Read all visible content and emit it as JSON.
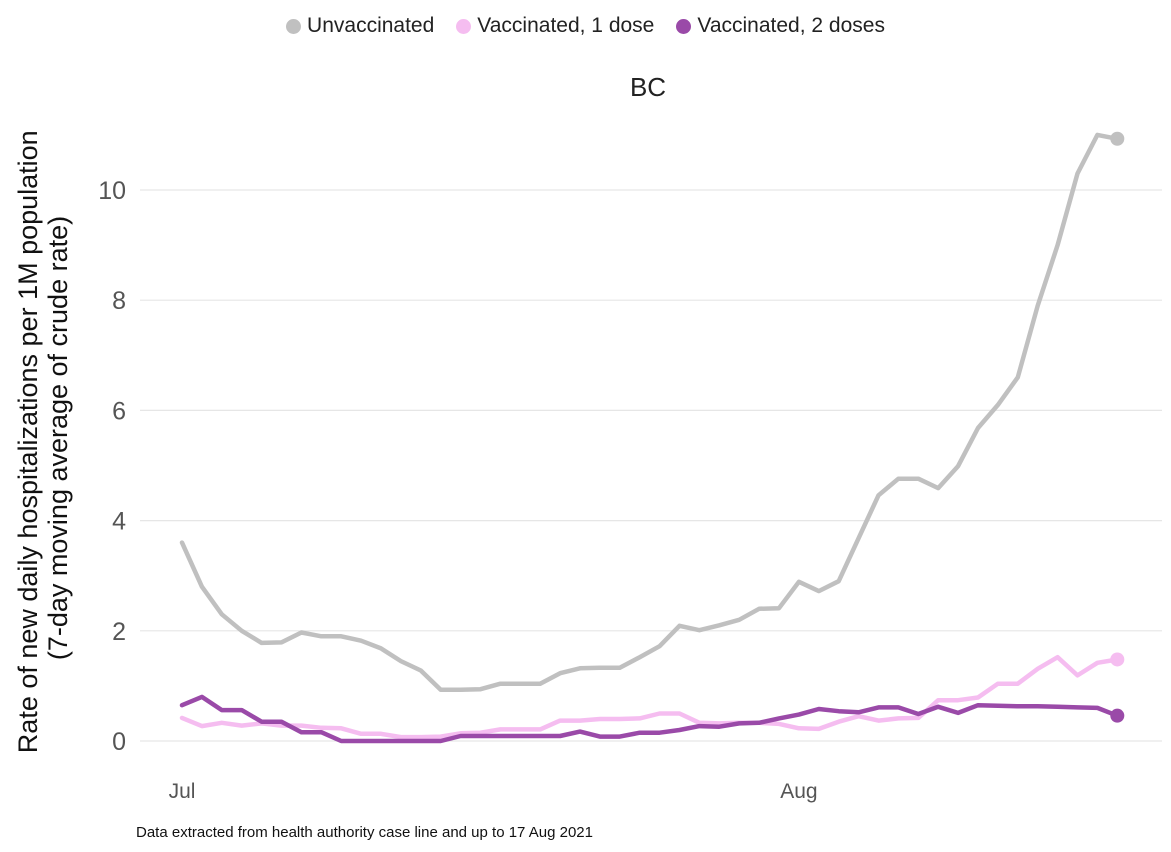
{
  "chart_data": {
    "type": "line",
    "title": "BC",
    "ylabel": [
      "Rate of new daily hospitalizations per 1M population",
      "(7-day moving average of crude rate)"
    ],
    "xlabel": "",
    "x_start": "2021-07-01",
    "x_end": "2021-08-17",
    "x_ticks": [
      {
        "date": "2021-07-01",
        "label": "Jul"
      },
      {
        "date": "2021-08-01",
        "label": "Aug"
      }
    ],
    "ylim": [
      0,
      11
    ],
    "y_ticks": [
      0,
      2,
      4,
      6,
      8,
      10
    ],
    "grid": true,
    "legend_position": "top-center",
    "caption": "Data extracted from health authority case line and up to 17 Aug 2021",
    "series": [
      {
        "name": "Unvaccinated",
        "color": "#c0c0c0",
        "values": [
          3.6,
          2.8,
          2.3,
          2.0,
          1.78,
          1.79,
          1.97,
          1.9,
          1.9,
          1.82,
          1.68,
          1.45,
          1.28,
          0.93,
          0.93,
          0.94,
          1.04,
          1.04,
          1.04,
          1.23,
          1.32,
          1.33,
          1.33,
          1.52,
          1.72,
          2.09,
          2.01,
          2.1,
          2.2,
          2.4,
          2.41,
          2.89,
          2.72,
          2.9,
          3.68,
          4.46,
          4.76,
          4.76,
          4.59,
          4.99,
          5.68,
          6.1,
          6.6,
          7.9,
          9.0,
          10.3,
          11.0,
          10.93
        ]
      },
      {
        "name": "Vaccinated, 1 dose",
        "color": "#f5bdf0",
        "values": [
          0.42,
          0.27,
          0.33,
          0.28,
          0.32,
          0.28,
          0.28,
          0.24,
          0.23,
          0.13,
          0.13,
          0.07,
          0.07,
          0.08,
          0.14,
          0.15,
          0.21,
          0.21,
          0.21,
          0.37,
          0.37,
          0.4,
          0.4,
          0.41,
          0.5,
          0.5,
          0.33,
          0.32,
          0.33,
          0.33,
          0.31,
          0.23,
          0.22,
          0.35,
          0.45,
          0.37,
          0.41,
          0.42,
          0.74,
          0.74,
          0.79,
          1.04,
          1.04,
          1.31,
          1.52,
          1.19,
          1.42,
          1.48
        ]
      },
      {
        "name": "Vaccinated, 2 doses",
        "color": "#9a4aa8",
        "values": [
          0.65,
          0.8,
          0.56,
          0.56,
          0.35,
          0.35,
          0.16,
          0.16,
          0.0,
          0.0,
          0.0,
          0.0,
          0.0,
          0.0,
          0.09,
          0.09,
          0.09,
          0.09,
          0.09,
          0.09,
          0.17,
          0.08,
          0.08,
          0.15,
          0.15,
          0.2,
          0.27,
          0.26,
          0.32,
          0.33,
          0.41,
          0.48,
          0.58,
          0.54,
          0.52,
          0.61,
          0.61,
          0.49,
          0.62,
          0.51,
          0.65,
          0.64,
          0.63,
          0.63,
          0.62,
          0.61,
          0.6,
          0.46
        ]
      }
    ]
  }
}
